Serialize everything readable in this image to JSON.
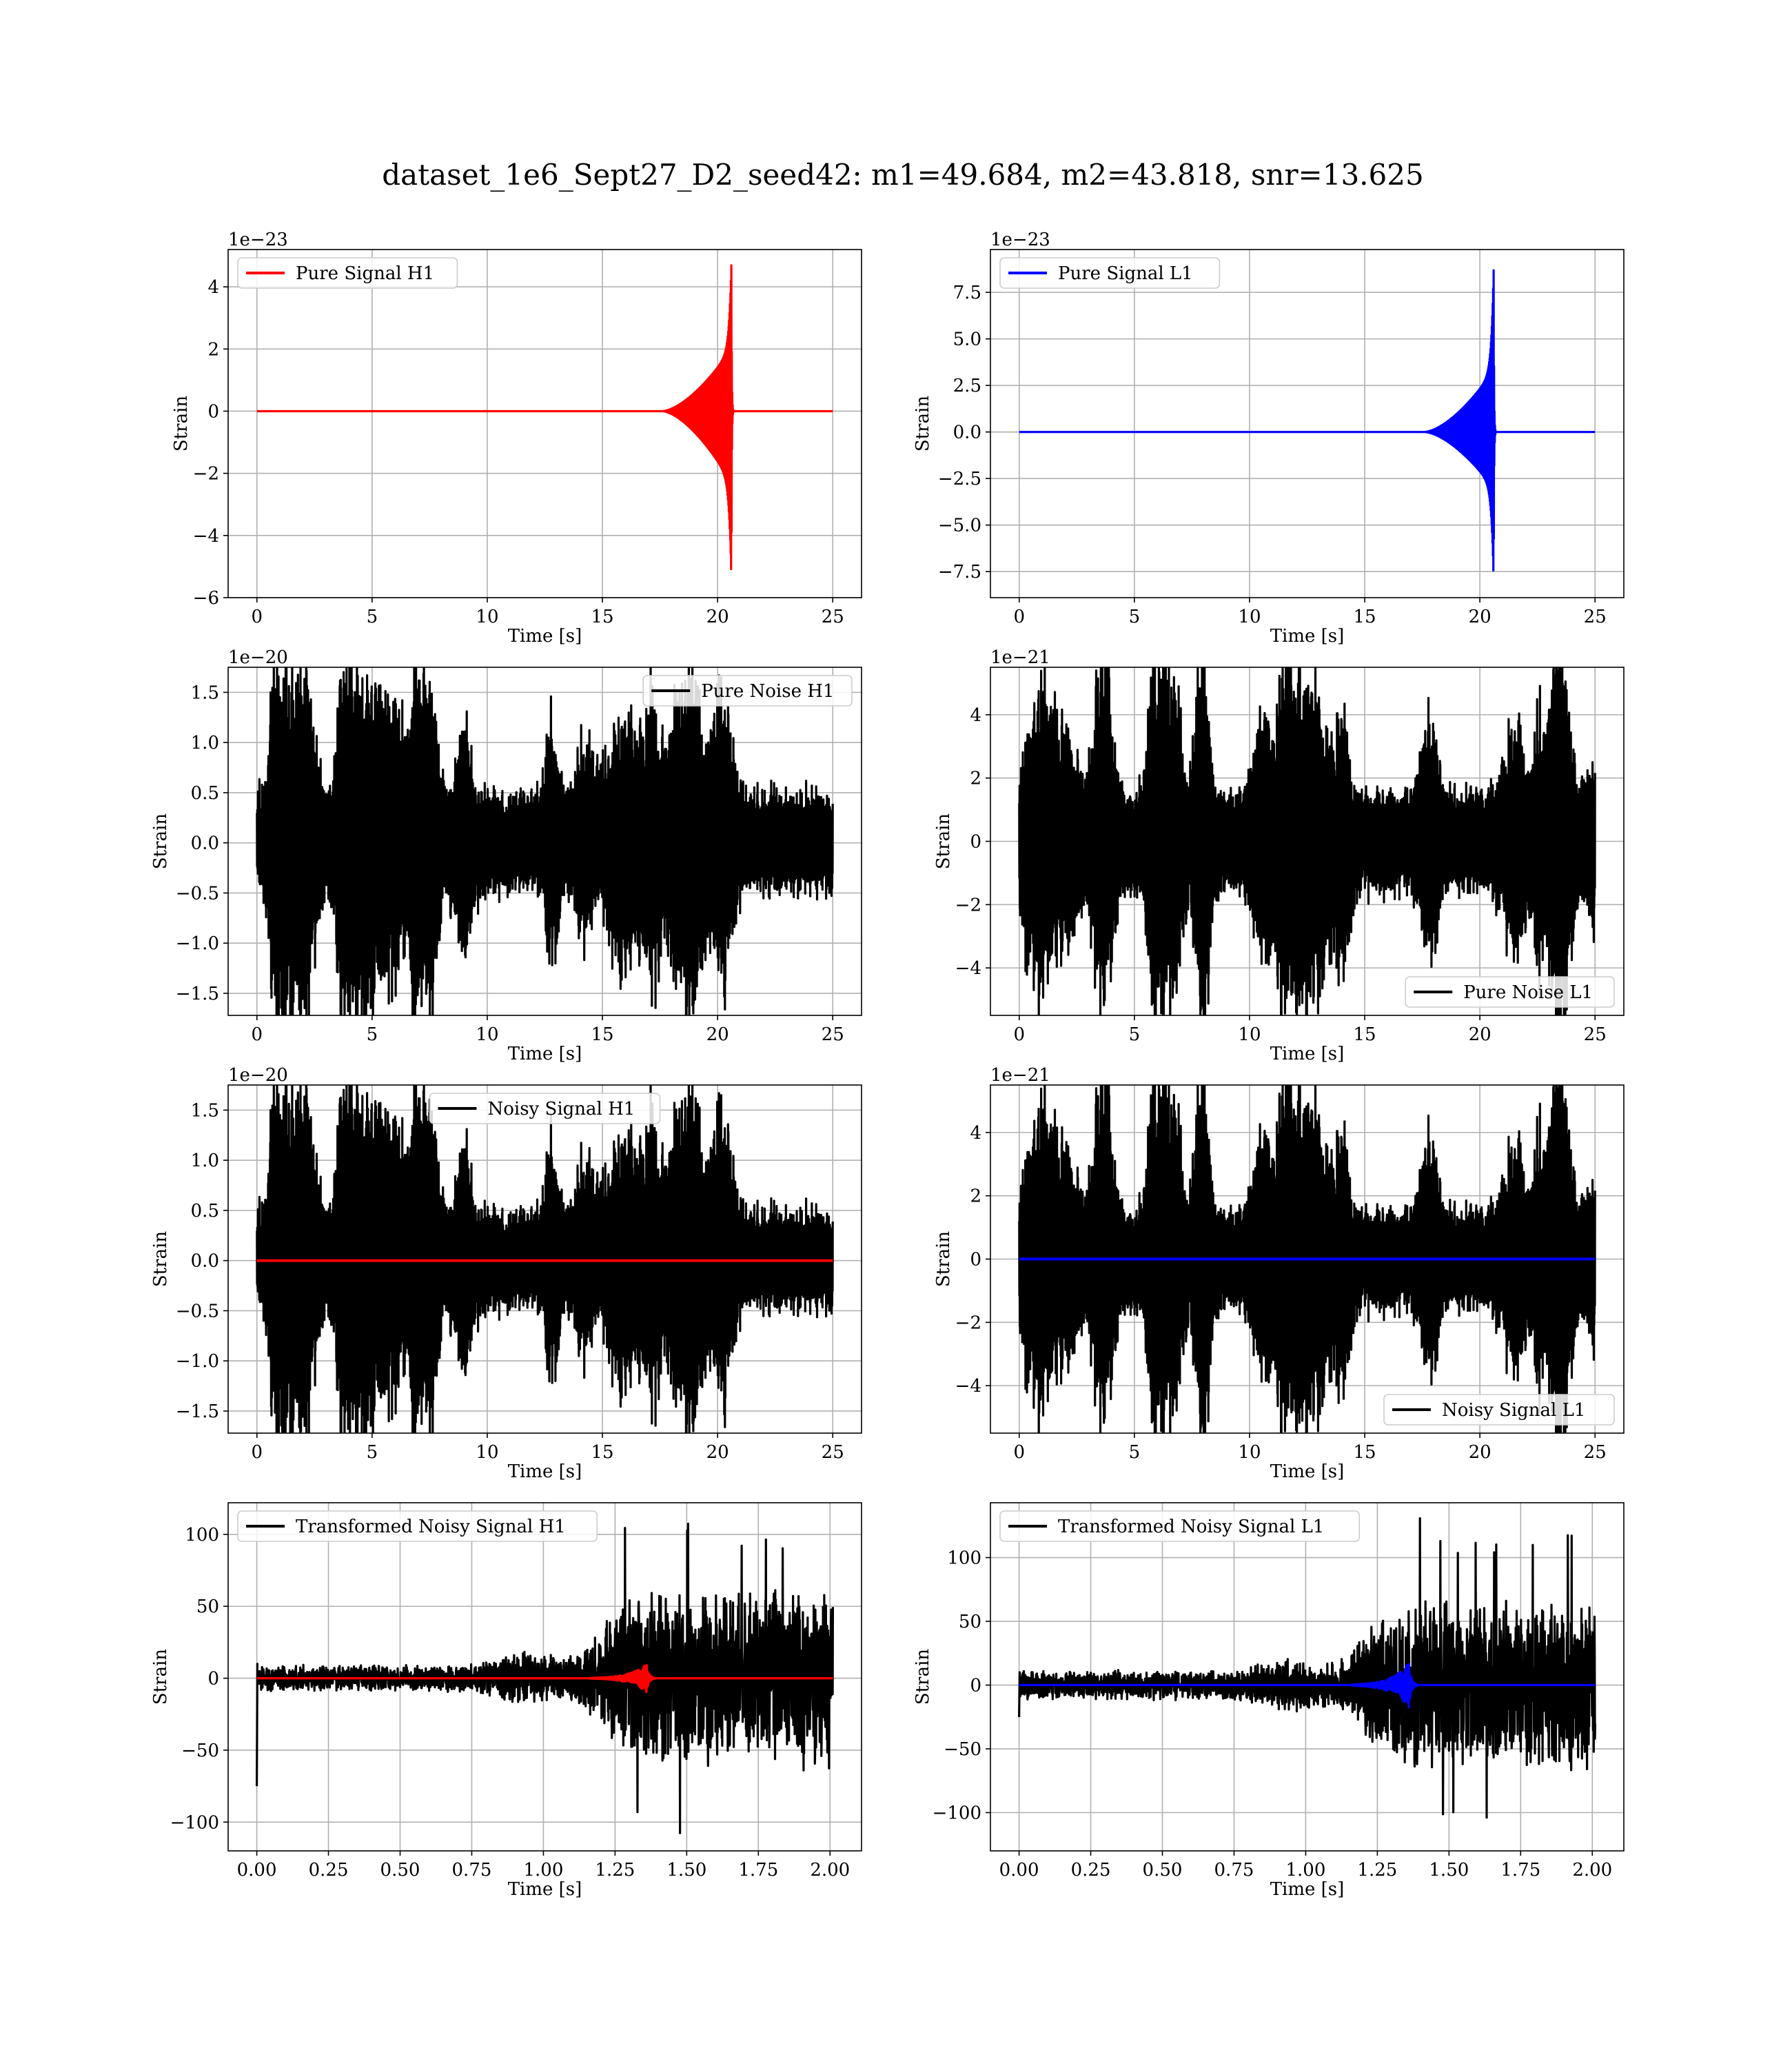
{
  "figure": {
    "title": "dataset_1e6_Sept27_D2_seed42: m1=49.684, m2=43.818, snr=13.625"
  },
  "chart_data": [
    {
      "type": "line",
      "panel": "top-left",
      "legend": "Pure Signal H1",
      "legend_loc": "upper left",
      "xlabel": "Time [s]",
      "ylabel": "Strain",
      "offset_label": "1e−23",
      "xlim": [
        -1.25,
        26.25
      ],
      "ylim": [
        -6.0,
        5.2
      ],
      "xticks": [
        0,
        5,
        10,
        15,
        20,
        25
      ],
      "xtick_labels": [
        "0",
        "5",
        "10",
        "15",
        "20",
        "25"
      ],
      "yticks": [
        -6,
        -4,
        -2,
        0,
        2,
        4
      ],
      "ytick_labels": [
        "−6",
        "−4",
        "−2",
        "0",
        "2",
        "4"
      ],
      "grid": true,
      "series": [
        {
          "role": "signal",
          "color": "#ff0000",
          "x_range": [
            0,
            25
          ],
          "merger_time": 20.6,
          "envelope_max": 4.8,
          "envelope_min": -5.5,
          "envelope_base": 2.0,
          "ringdown_offset": 0.1
        }
      ]
    },
    {
      "type": "line",
      "panel": "top-right",
      "legend": "Pure Signal L1",
      "legend_loc": "upper left",
      "xlabel": "Time [s]",
      "ylabel": "Strain",
      "offset_label": "1e−23",
      "xlim": [
        -1.25,
        26.25
      ],
      "ylim": [
        -8.9,
        9.8
      ],
      "xticks": [
        0,
        5,
        10,
        15,
        20,
        25
      ],
      "xtick_labels": [
        "0",
        "5",
        "10",
        "15",
        "20",
        "25"
      ],
      "yticks": [
        -7.5,
        -5.0,
        -2.5,
        0.0,
        2.5,
        5.0,
        7.5
      ],
      "ytick_labels": [
        "−7.5",
        "−5.0",
        "−2.5",
        "0.0",
        "2.5",
        "5.0",
        "7.5"
      ],
      "grid": true,
      "series": [
        {
          "role": "signal",
          "color": "#0000ff",
          "x_range": [
            0,
            25
          ],
          "merger_time": 20.6,
          "envelope_max": 8.9,
          "envelope_min": -8.1,
          "envelope_base": 3.3,
          "ringdown_offset": 0.1
        }
      ]
    },
    {
      "type": "line",
      "panel": "row2-left",
      "legend": "Pure Noise H1",
      "legend_loc": "upper right",
      "xlabel": "Time [s]",
      "ylabel": "Strain",
      "offset_label": "1e−20",
      "xlim": [
        -1.25,
        26.25
      ],
      "ylim": [
        -1.72,
        1.75
      ],
      "xticks": [
        0,
        5,
        10,
        15,
        20,
        25
      ],
      "xtick_labels": [
        "0",
        "5",
        "10",
        "15",
        "20",
        "25"
      ],
      "yticks": [
        -1.5,
        -1.0,
        -0.5,
        0.0,
        0.5,
        1.0,
        1.5
      ],
      "ytick_labels": [
        "−1.5",
        "−1.0",
        "−0.5",
        "0.0",
        "0.5",
        "1.0",
        "1.5"
      ],
      "grid": true,
      "series": [
        {
          "role": "noise",
          "color": "#000000",
          "x_range": [
            0,
            25
          ],
          "amplitude": 0.75,
          "peak": 1.55,
          "seed": 11
        }
      ]
    },
    {
      "type": "line",
      "panel": "row2-right",
      "legend": "Pure Noise L1",
      "legend_loc": "lower right",
      "xlabel": "Time [s]",
      "ylabel": "Strain",
      "offset_label": "1e−21",
      "xlim": [
        -1.25,
        26.25
      ],
      "ylim": [
        -5.5,
        5.5
      ],
      "xticks": [
        0,
        5,
        10,
        15,
        20,
        25
      ],
      "xtick_labels": [
        "0",
        "5",
        "10",
        "15",
        "20",
        "25"
      ],
      "yticks": [
        -4,
        -2,
        0,
        2,
        4
      ],
      "ytick_labels": [
        "−4",
        "−2",
        "0",
        "2",
        "4"
      ],
      "grid": true,
      "series": [
        {
          "role": "noise",
          "color": "#000000",
          "x_range": [
            0,
            25
          ],
          "amplitude": 2.4,
          "peak": 5.0,
          "seed": 23
        }
      ]
    },
    {
      "type": "line",
      "panel": "row3-left",
      "legend": "Noisy Signal H1",
      "legend_loc": "upper center",
      "xlabel": "Time [s]",
      "ylabel": "Strain",
      "offset_label": "1e−20",
      "xlim": [
        -1.25,
        26.25
      ],
      "ylim": [
        -1.72,
        1.75
      ],
      "xticks": [
        0,
        5,
        10,
        15,
        20,
        25
      ],
      "xtick_labels": [
        "0",
        "5",
        "10",
        "15",
        "20",
        "25"
      ],
      "yticks": [
        -1.5,
        -1.0,
        -0.5,
        0.0,
        0.5,
        1.0,
        1.5
      ],
      "ytick_labels": [
        "−1.5",
        "−1.0",
        "−0.5",
        "0.0",
        "0.5",
        "1.0",
        "1.5"
      ],
      "grid": true,
      "series": [
        {
          "role": "noise",
          "color": "#000000",
          "x_range": [
            0,
            25
          ],
          "amplitude": 0.75,
          "peak": 1.55,
          "seed": 11
        },
        {
          "role": "flat-signal",
          "color": "#ff0000",
          "x_range": [
            0,
            25
          ],
          "value": 0.0
        }
      ]
    },
    {
      "type": "line",
      "panel": "row3-right",
      "legend": "Noisy Signal L1",
      "legend_loc": "lower right",
      "xlabel": "Time [s]",
      "ylabel": "Strain",
      "offset_label": "1e−21",
      "xlim": [
        -1.25,
        26.25
      ],
      "ylim": [
        -5.5,
        5.5
      ],
      "xticks": [
        0,
        5,
        10,
        15,
        20,
        25
      ],
      "xtick_labels": [
        "0",
        "5",
        "10",
        "15",
        "20",
        "25"
      ],
      "yticks": [
        -4,
        -2,
        0,
        2,
        4
      ],
      "ytick_labels": [
        "−4",
        "−2",
        "0",
        "2",
        "4"
      ],
      "grid": true,
      "series": [
        {
          "role": "noise",
          "color": "#000000",
          "x_range": [
            0,
            25
          ],
          "amplitude": 2.4,
          "peak": 5.0,
          "seed": 23
        },
        {
          "role": "flat-signal",
          "color": "#0000ff",
          "x_range": [
            0,
            25
          ],
          "value": 0.0
        }
      ]
    },
    {
      "type": "line",
      "panel": "bottom-left",
      "legend": "Transformed Noisy Signal H1",
      "legend_loc": "upper left",
      "xlabel": "Time [s]",
      "ylabel": "Strain",
      "offset_label": "",
      "xlim": [
        -0.1,
        2.11
      ],
      "ylim": [
        -120,
        122
      ],
      "xticks": [
        0,
        0.25,
        0.5,
        0.75,
        1.0,
        1.25,
        1.5,
        1.75,
        2.0
      ],
      "xtick_labels": [
        "0.00",
        "0.25",
        "0.50",
        "0.75",
        "1.00",
        "1.25",
        "1.50",
        "1.75",
        "2.00"
      ],
      "yticks": [
        -100,
        -50,
        0,
        50,
        100
      ],
      "ytick_labels": [
        "−100",
        "−50",
        "0",
        "50",
        "100"
      ],
      "grid": true,
      "series": [
        {
          "role": "whitened",
          "color": "#000000",
          "x_range": [
            0,
            2.01
          ],
          "early_amp": 8,
          "late_amp": 55,
          "transition": 1.2,
          "max": 110,
          "min": -108,
          "seed": 5,
          "start_spike": -75
        },
        {
          "role": "chirp",
          "color": "#ff0000",
          "x_range": [
            0,
            2.01
          ],
          "merger_time": 1.36,
          "peak": 10
        }
      ]
    },
    {
      "type": "line",
      "panel": "bottom-right",
      "legend": "Transformed Noisy Signal L1",
      "legend_loc": "upper left",
      "xlabel": "Time [s]",
      "ylabel": "Strain",
      "offset_label": "",
      "xlim": [
        -0.1,
        2.11
      ],
      "ylim": [
        -130,
        143
      ],
      "xticks": [
        0,
        0.25,
        0.5,
        0.75,
        1.0,
        1.25,
        1.5,
        1.75,
        2.0
      ],
      "xtick_labels": [
        "0.00",
        "0.25",
        "0.50",
        "0.75",
        "1.00",
        "1.25",
        "1.50",
        "1.75",
        "2.00"
      ],
      "yticks": [
        -100,
        -50,
        0,
        50,
        100
      ],
      "ytick_labels": [
        "−100",
        "−50",
        "0",
        "50",
        "100"
      ],
      "grid": true,
      "series": [
        {
          "role": "whitened",
          "color": "#000000",
          "x_range": [
            0,
            2.01
          ],
          "early_amp": 10,
          "late_amp": 60,
          "transition": 1.2,
          "max": 132,
          "min": -115,
          "seed": 9,
          "start_spike": -25
        },
        {
          "role": "chirp",
          "color": "#0000ff",
          "x_range": [
            0,
            2.01
          ],
          "merger_time": 1.36,
          "peak": 18
        }
      ]
    }
  ]
}
